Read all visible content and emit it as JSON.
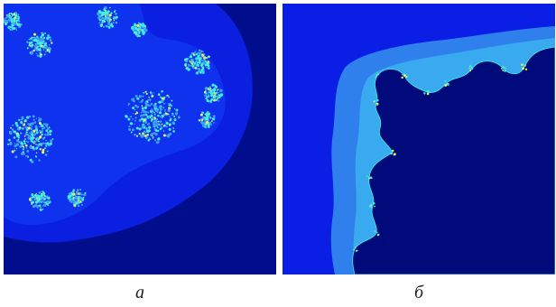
{
  "panels": [
    {
      "id": "a",
      "caption": "а"
    },
    {
      "id": "b",
      "caption": "б"
    }
  ],
  "colors": {
    "deep_navy": "#000a7a",
    "field_blue": "#0a1ee6",
    "halo_blue": "#1f4cf5",
    "light_blue": "#3fa0f0",
    "sparkle_cyan": "#40f0e0",
    "sparkle_yellow": "#e8f060"
  }
}
